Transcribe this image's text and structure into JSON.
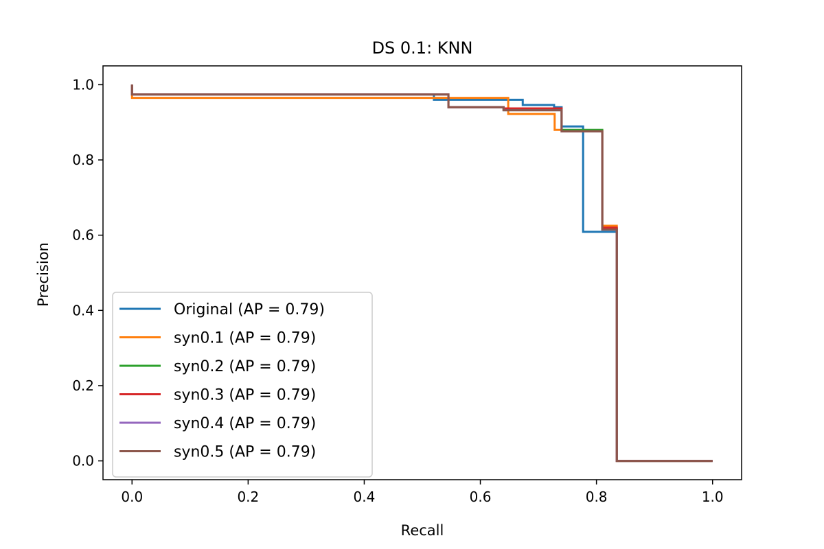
{
  "chart_data": {
    "type": "line",
    "title": "DS 0.1: KNN",
    "xlabel": "Recall",
    "ylabel": "Precision",
    "xlim": [
      -0.05,
      1.05
    ],
    "ylim": [
      -0.05,
      1.05
    ],
    "xticks": [
      0.0,
      0.2,
      0.4,
      0.6,
      0.8,
      1.0
    ],
    "yticks": [
      0.0,
      0.2,
      0.4,
      0.6,
      0.8,
      1.0
    ],
    "xtick_labels": [
      "0.0",
      "0.2",
      "0.4",
      "0.6",
      "0.8",
      "1.0"
    ],
    "ytick_labels": [
      "0.0",
      "0.2",
      "0.4",
      "0.6",
      "0.8",
      "1.0"
    ],
    "legend_position": "lower-left",
    "step": "post",
    "series": [
      {
        "name": "Original (AP = 0.79)",
        "color": "#1f77b4",
        "x": [
          0.0,
          0.0,
          0.52,
          0.673,
          0.727,
          0.74,
          0.777,
          0.81,
          0.835,
          0.835,
          1.0
        ],
        "y": [
          1.0,
          0.974,
          0.96,
          0.946,
          0.94,
          0.889,
          0.609,
          0.609,
          0.609,
          0.0,
          0.0
        ]
      },
      {
        "name": "syn0.1 (AP = 0.79)",
        "color": "#ff7f0e",
        "x": [
          0.0,
          0.0,
          0.52,
          0.648,
          0.728,
          0.74,
          0.81,
          0.835,
          0.835,
          1.0
        ],
        "y": [
          1.0,
          0.965,
          0.965,
          0.922,
          0.88,
          0.878,
          0.625,
          0.625,
          0.0,
          0.0
        ]
      },
      {
        "name": "syn0.2 (AP = 0.79)",
        "color": "#2ca02c",
        "x": [
          0.0,
          0.0,
          0.545,
          0.64,
          0.74,
          0.81,
          0.835,
          0.835,
          1.0
        ],
        "y": [
          1.0,
          0.974,
          0.94,
          0.932,
          0.88,
          0.617,
          0.617,
          0.0,
          0.0
        ]
      },
      {
        "name": "syn0.3 (AP = 0.79)",
        "color": "#d62728",
        "x": [
          0.0,
          0.0,
          0.545,
          0.64,
          0.74,
          0.81,
          0.835,
          0.835,
          1.0
        ],
        "y": [
          1.0,
          0.974,
          0.94,
          0.937,
          0.876,
          0.62,
          0.62,
          0.0,
          0.0
        ]
      },
      {
        "name": "syn0.4 (AP = 0.79)",
        "color": "#9467bd",
        "x": [
          0.0,
          0.0,
          0.545,
          0.64,
          0.74,
          0.81,
          0.835,
          0.835,
          1.0
        ],
        "y": [
          1.0,
          0.974,
          0.94,
          0.932,
          0.876,
          0.615,
          0.615,
          0.0,
          0.0
        ]
      },
      {
        "name": "syn0.5 (AP = 0.79)",
        "color": "#8c564b",
        "x": [
          0.0,
          0.0,
          0.545,
          0.64,
          0.74,
          0.81,
          0.835,
          0.835,
          1.0
        ],
        "y": [
          1.0,
          0.974,
          0.94,
          0.932,
          0.876,
          0.615,
          0.615,
          0.0,
          0.0
        ]
      }
    ]
  }
}
